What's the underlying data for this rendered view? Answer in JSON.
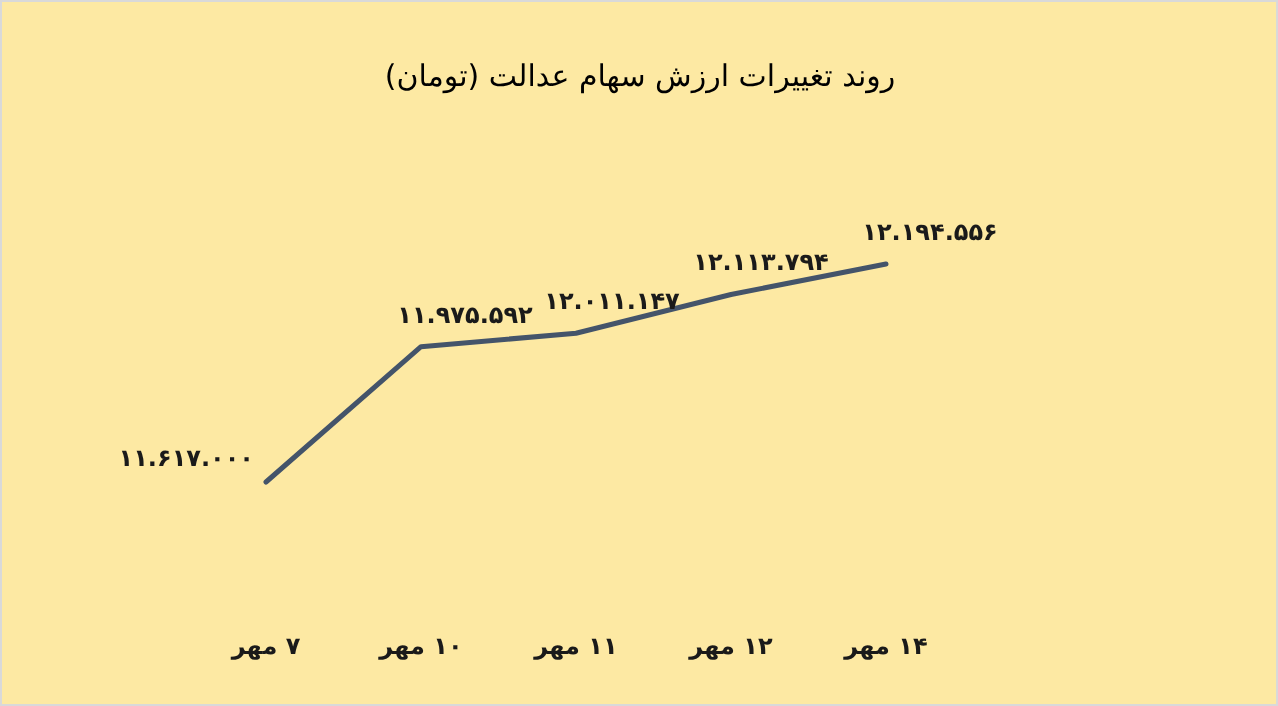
{
  "chart_data": {
    "type": "line",
    "title": "روند تغییرات ارزش سهام عدالت (تومان)",
    "categories": [
      "۷ مهر",
      "۱۰ مهر",
      "۱۱ مهر",
      "۱۲ مهر",
      "۱۴ مهر"
    ],
    "series": [
      {
        "color": "#44546a",
        "values": [
          11617000,
          11975592,
          12011147,
          12113794,
          12194556
        ],
        "value_labels": [
          "۱۱.۶۱۷.۰۰۰",
          "۱۱.۹۷۵.۵۹۲",
          "۱۲.۰۱۱.۱۴۷",
          "۱۲.۱۱۳.۷۹۴",
          "۱۲.۱۹۴.۵۵۶"
        ]
      }
    ],
    "grid": false,
    "marker": "none",
    "line_style": "solid"
  }
}
